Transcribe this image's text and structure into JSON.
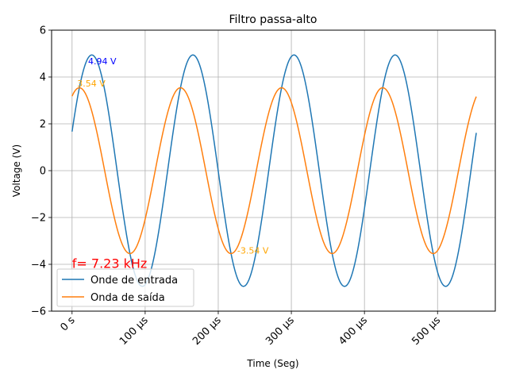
{
  "chart_data": {
    "type": "line",
    "title": "Filtro passa-alto",
    "xlabel": "Time (Seg)",
    "ylabel": "Voltage (V)",
    "xlim": [
      -28,
      579
    ],
    "ylim": [
      -6,
      6
    ],
    "x_unit": "µs",
    "x_ticks": [
      {
        "value": 0,
        "label": "0 s"
      },
      {
        "value": 100,
        "label": "100 µs"
      },
      {
        "value": 200,
        "label": "200 µs"
      },
      {
        "value": 300,
        "label": "300 µs"
      },
      {
        "value": 400,
        "label": "400 µs"
      },
      {
        "value": 500,
        "label": "500 µs"
      }
    ],
    "y_ticks": [
      {
        "value": -6,
        "label": "−6"
      },
      {
        "value": -4,
        "label": "−4"
      },
      {
        "value": -2,
        "label": "−2"
      },
      {
        "value": 0,
        "label": "0"
      },
      {
        "value": 2,
        "label": "2"
      },
      {
        "value": 4,
        "label": "4"
      },
      {
        "value": 6,
        "label": "6"
      }
    ],
    "grid": true,
    "legend_position": "lower-left",
    "series": [
      {
        "name": "Onde de entrada",
        "color": "#1f77b4",
        "x_range": [
          0,
          553
        ],
        "amplitude": 4.94,
        "frequency_khz": 7.23,
        "peak_time": 27
      },
      {
        "name": "Onda de saída",
        "color": "#ff7f0e",
        "x_range": [
          0,
          553
        ],
        "amplitude": 3.54,
        "frequency_khz": 7.23,
        "peak_time": 10
      }
    ],
    "annotations": [
      {
        "text": "4.94 V",
        "x": 22,
        "y": 4.55,
        "color": "#0000ff"
      },
      {
        "text": "3.54 V",
        "x": 7,
        "y": 3.6,
        "color": "#ffa500"
      },
      {
        "text": "-3.54 V",
        "x": 226,
        "y": -3.55,
        "color": "#ffa500"
      },
      {
        "text": "f= 7.23 kHz",
        "x": 0,
        "y": -4.15,
        "color": "#ff0000"
      }
    ]
  }
}
